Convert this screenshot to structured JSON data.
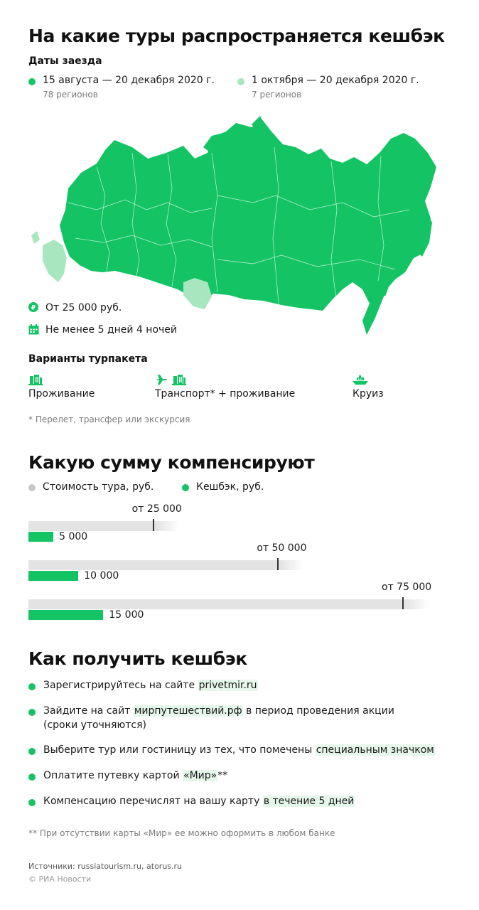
{
  "colors": {
    "accent": "#14c364",
    "accent_light": "#a8e6bf",
    "gray_dot": "#c8c8c8",
    "highlight": "#e5f6ea"
  },
  "section1": {
    "title": "На какие туры распространяется кешбэк",
    "dates_heading": "Даты заезда",
    "legend": [
      {
        "label": "15 августа — 20 декабря 2020 г.",
        "sub": "78 регионов",
        "color": "#14c364"
      },
      {
        "label": "1 октября — 20 декабря 2020 г.",
        "sub": "7 регионов",
        "color": "#a8e6bf"
      }
    ],
    "map_icon": "russia-map",
    "min_price": {
      "icon": "ruble-icon",
      "text": "От 25 000 руб."
    },
    "min_stay": {
      "icon": "calendar-icon",
      "text": "Не менее 5 дней 4 ночей"
    },
    "packages_heading": "Варианты турпакета",
    "packages": [
      {
        "icon": "hotel-icon",
        "label": "Проживание"
      },
      {
        "icon": "plane-hotel-icon",
        "label": "Транспорт* + проживание"
      },
      {
        "icon": "ship-icon",
        "label": "Круиз"
      }
    ],
    "footnote": "* Перелет, трансфер или экскурсия"
  },
  "section2": {
    "title": "Какую сумму компенсируют",
    "legend": [
      {
        "label": "Стоимость тура, руб.",
        "color": "#c8c8c8"
      },
      {
        "label": "Кешбэк, руб.",
        "color": "#14c364"
      }
    ],
    "chart_data": {
      "type": "bar",
      "categories": [
        "от 25 000",
        "от 50 000",
        "от 75 000"
      ],
      "series": [
        {
          "name": "Стоимость тура, руб.",
          "values": [
            25000,
            50000,
            75000
          ]
        },
        {
          "name": "Кешбэк, руб.",
          "values": [
            5000,
            10000,
            15000
          ]
        }
      ],
      "cost_labels": [
        "от 25 000",
        "от 50 000",
        "от 75 000"
      ],
      "cashback_labels": [
        "5 000",
        "10 000",
        "15 000"
      ]
    }
  },
  "section3": {
    "title": "Как получить кешбэк",
    "steps": [
      {
        "pre": "Зарегистрируйтесь на сайте ",
        "hl": "privetmir.ru",
        "post": "",
        "line2": ""
      },
      {
        "pre": "Зайдите на сайт ",
        "hl": "мирпутешествий.рф",
        "post": " в период проведения акции",
        "line2": "(сроки уточняются)"
      },
      {
        "pre": "Выберите тур или гостиницу из тех, что помечены ",
        "hl": "специальным значком",
        "post": "",
        "line2": ""
      },
      {
        "pre": "Оплатите путевку картой ",
        "hl": "«Мир»",
        "post": "**",
        "line2": ""
      },
      {
        "pre": "Компенсацию перечислят на вашу карту ",
        "hl": "в течение 5 дней",
        "post": "",
        "line2": ""
      }
    ],
    "footnote": "** При отсутствии карты «Мир» ее можно оформить в любом банке"
  },
  "footer": {
    "sources": "Источники: russiatourism.ru, atorus.ru",
    "copyright": "© РИА Новости"
  }
}
